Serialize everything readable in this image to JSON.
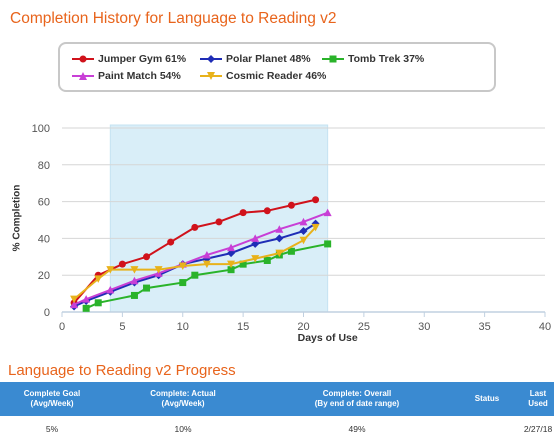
{
  "history": {
    "title": "Completion History for Language to Reading v2",
    "legend": [
      {
        "label": "Jumper Gym 61%",
        "color": "#d0121b",
        "marker": "circle"
      },
      {
        "label": "Polar Planet 48%",
        "color": "#1f2db6",
        "marker": "diamond"
      },
      {
        "label": "Tomb Trek 37%",
        "color": "#2ab32a",
        "marker": "square"
      },
      {
        "label": "Paint Match 54%",
        "color": "#c83fd6",
        "marker": "triangle"
      },
      {
        "label": "Cosmic Reader 46%",
        "color": "#e8b21b",
        "marker": "triangle-down"
      }
    ]
  },
  "chart_data": {
    "type": "line",
    "xlabel": "Days of Use",
    "ylabel": "% Completion",
    "xlim": [
      0,
      40
    ],
    "ylim": [
      0,
      100
    ],
    "x_ticks": [
      0,
      5,
      10,
      15,
      20,
      25,
      30,
      35,
      40
    ],
    "y_ticks": [
      0,
      20,
      40,
      60,
      80,
      100
    ],
    "highlight_band": [
      4,
      22
    ],
    "grid": "horizontal",
    "series": [
      {
        "name": "Jumper Gym 61%",
        "color": "#d0121b",
        "marker": "circle",
        "x": [
          1,
          3,
          5,
          7,
          9,
          11,
          13,
          15,
          17,
          19,
          21
        ],
        "y": [
          5,
          20,
          26,
          30,
          38,
          46,
          49,
          54,
          55,
          58,
          61
        ]
      },
      {
        "name": "Polar Planet 48%",
        "color": "#1f2db6",
        "marker": "diamond",
        "x": [
          1,
          2,
          4,
          6,
          8,
          10,
          12,
          14,
          16,
          18,
          20,
          21
        ],
        "y": [
          3,
          6,
          11,
          16,
          20,
          26,
          29,
          32,
          37,
          40,
          44,
          48
        ]
      },
      {
        "name": "Tomb Trek 37%",
        "color": "#2ab32a",
        "marker": "square",
        "x": [
          2,
          3,
          6,
          7,
          10,
          11,
          14,
          15,
          17,
          18,
          19,
          22
        ],
        "y": [
          2,
          5,
          9,
          13,
          16,
          20,
          23,
          26,
          28,
          31,
          33,
          37
        ]
      },
      {
        "name": "Paint Match 54%",
        "color": "#c83fd6",
        "marker": "triangle",
        "x": [
          1,
          2,
          4,
          6,
          8,
          10,
          12,
          14,
          16,
          18,
          20,
          22
        ],
        "y": [
          4,
          7,
          12,
          17,
          21,
          26,
          31,
          35,
          40,
          45,
          49,
          54
        ]
      },
      {
        "name": "Cosmic Reader 46%",
        "color": "#e8b21b",
        "marker": "triangle-down",
        "x": [
          1,
          3,
          4,
          6,
          8,
          10,
          12,
          14,
          16,
          18,
          20,
          21
        ],
        "y": [
          7,
          18,
          23,
          23,
          23,
          25,
          26,
          26,
          29,
          32,
          39,
          46
        ]
      }
    ]
  },
  "progress": {
    "title": "Language to Reading v2 Progress",
    "headers": [
      {
        "main": "Complete Goal",
        "sub": "(Avg/Week)"
      },
      {
        "main": "Complete: Actual",
        "sub": "(Avg/Week)"
      },
      {
        "main": "Complete: Overall",
        "sub": "(By end of date range)"
      },
      {
        "main": "Status",
        "sub": ""
      },
      {
        "main": "Last",
        "sub": "Used"
      }
    ],
    "row": {
      "goal": "5%",
      "actual": "10%",
      "overall": "49%",
      "status": "",
      "last_used": "2/27/18"
    }
  }
}
